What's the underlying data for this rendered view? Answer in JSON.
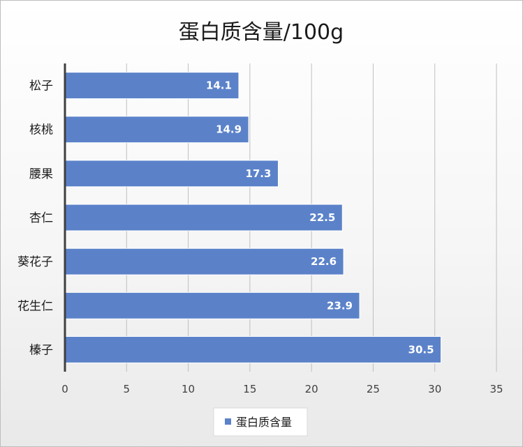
{
  "chart_data": {
    "type": "bar",
    "orientation": "horizontal",
    "title": "蛋白质含量/100g",
    "categories": [
      "松子",
      "核桃",
      "腰果",
      "杏仁",
      "葵花子",
      "花生仁",
      "榛子"
    ],
    "series": [
      {
        "name": "蛋白质含量",
        "values": [
          14.1,
          14.9,
          17.3,
          22.5,
          22.6,
          23.9,
          30.5
        ]
      }
    ],
    "xlim": [
      0,
      35
    ],
    "xticks": [
      0,
      5,
      10,
      15,
      20,
      25,
      30,
      35
    ],
    "xlabel": "",
    "ylabel": "",
    "grid": true,
    "legend_position": "bottom",
    "data_labels": true,
    "colors": {
      "bar": "#5b82c9",
      "bar_edge": "#ffffff",
      "grid": "#bfbfbf",
      "axis": "#3f3f3f"
    }
  }
}
